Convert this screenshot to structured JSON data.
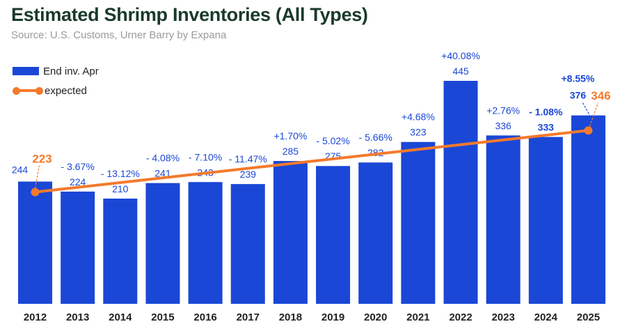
{
  "title": "Estimated Shrimp Inventories (All Types)",
  "subtitle": "Source: U.S. Customs, Urner Barry by Expana",
  "colors": {
    "bar": "#1a47d6",
    "line": "#f47a2c",
    "label": "#1a47d6",
    "axis_text": "#222222"
  },
  "chart_data": {
    "type": "bar",
    "title": "Estimated Shrimp Inventories (All Types)",
    "categories": [
      "2012",
      "2013",
      "2014",
      "2015",
      "2016",
      "2017",
      "2018",
      "2019",
      "2020",
      "2021",
      "2022",
      "2023",
      "2024",
      "2025"
    ],
    "series": [
      {
        "name": "End inv. Apr",
        "type": "bar",
        "values": [
          244,
          224,
          210,
          241,
          243,
          239,
          285,
          275,
          282,
          323,
          445,
          336,
          333,
          376
        ],
        "value_labels": [
          "244",
          "224",
          "210",
          "241",
          "243",
          "239",
          "285",
          "275",
          "282",
          "323",
          "445",
          "336",
          "333",
          "376"
        ],
        "pct_labels": [
          "",
          "- 3.67%",
          "- 13.12%",
          "- 4.08%",
          "- 7.10%",
          "- 11.47%",
          "+1.70%",
          "- 5.02%",
          "- 5.66%",
          "+4.68%",
          "+40.08%",
          "+2.76%",
          "- 1.08%",
          "+8.55%"
        ]
      },
      {
        "name": "expected",
        "type": "line",
        "points": [
          {
            "x": "2012",
            "y": 223
          },
          {
            "x": "2025",
            "y": 346
          }
        ],
        "point_labels": [
          "223",
          "346"
        ]
      }
    ],
    "ylim": [
      0,
      470
    ],
    "legend_position": "top-left",
    "grid": false
  }
}
